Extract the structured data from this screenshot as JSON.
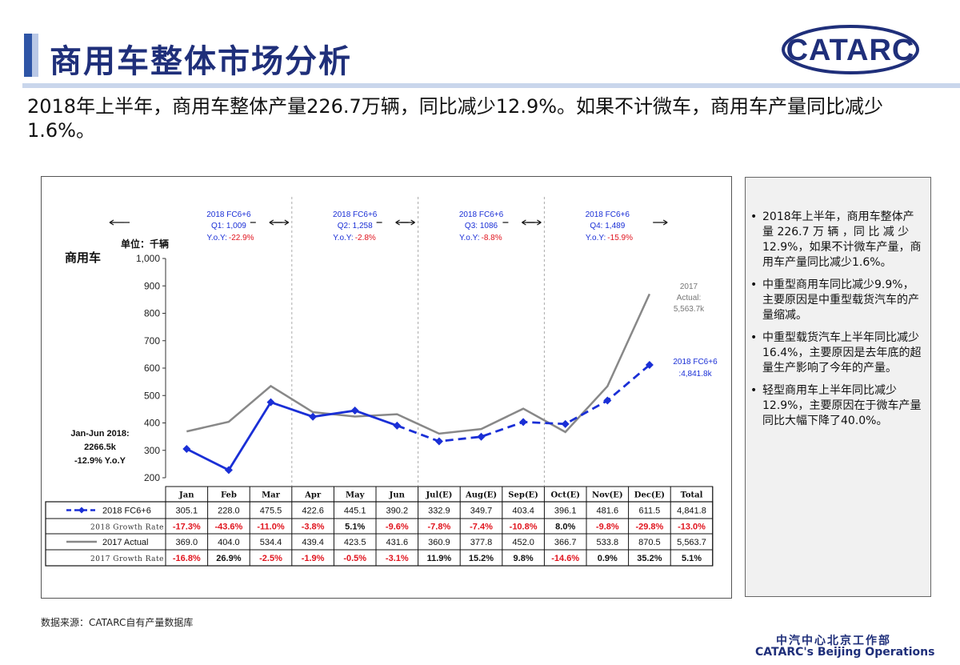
{
  "header": {
    "title": "商用车整体市场分析",
    "logo_text": "CATARC"
  },
  "subtitle": "2018年上半年，商用车整体产量226.7万辆，同比减少12.9%。如果不计微车，商用车产量同比减少1.6%。",
  "side_panel": {
    "bullets": [
      "2018年上半年，商用车整体产量 226.7 万 辆 ，同 比 减 少12.9%，如果不计微车产量，商用车产量同比减少1.6%。",
      "中重型商用车同比减少9.9%，主要原因是中重型载货汽车的产量缩减。",
      "中重型载货汽车上半年同比减少16.4%，主要原因是去年底的超量生产影响了今年的产量。",
      "轻型商用车上半年同比减少12.9%，主要原因在于微车产量同比大幅下降了40.0%。"
    ],
    "bullet_glyph": "•"
  },
  "source": "数据来源：CATARC自有产量数据库",
  "footer": {
    "cn": "中汽中心北京工作部",
    "en": "CATARC's Beijing Operations"
  },
  "colors": {
    "brand": "#1f2f7a",
    "fc_series": "#1a2fd6",
    "actual_series": "#888888",
    "negative": "#e0141e"
  },
  "chart_data": {
    "type": "line",
    "title": "商用车",
    "ylabel": "单位：千辆",
    "ylim": [
      200,
      1000
    ],
    "yticks": [
      "200",
      "300",
      "400",
      "500",
      "600",
      "700",
      "800",
      "900",
      "1,000"
    ],
    "categories": [
      "Jan",
      "Feb",
      "Mar",
      "Apr",
      "May",
      "Jun",
      "Jul(E)",
      "Aug(E)",
      "Sep(E)",
      "Oct(E)",
      "Nov(E)",
      "Dec(E)"
    ],
    "total_label": "Total",
    "series": [
      {
        "name": "2018 FC6+6",
        "values": [
          305.1,
          228.0,
          475.5,
          422.6,
          445.1,
          390.2,
          332.9,
          349.7,
          403.4,
          396.1,
          481.6,
          611.5
        ],
        "cells": [
          "305.1",
          "228.0",
          "475.5",
          "422.6",
          "445.1",
          "390.2",
          "332.9",
          "349.7",
          "403.4",
          "396.1",
          "481.6",
          "611.5",
          "4,841.8"
        ],
        "growth_label": "2018 Growth Rate",
        "growth": [
          "-17.3%",
          "-43.6%",
          "-11.0%",
          "-3.8%",
          "5.1%",
          "-9.6%",
          "-7.8%",
          "-7.4%",
          "-10.8%",
          "8.0%",
          "-9.8%",
          "-29.8%",
          "-13.0%"
        ]
      },
      {
        "name": "2017 Actual",
        "values": [
          369.0,
          404.0,
          534.4,
          439.4,
          423.5,
          431.6,
          360.9,
          377.8,
          452.0,
          366.7,
          533.8,
          870.5
        ],
        "cells": [
          "369.0",
          "404.0",
          "534.4",
          "439.4",
          "423.5",
          "431.6",
          "360.9",
          "377.8",
          "452.0",
          "366.7",
          "533.8",
          "870.5",
          "5,563.7"
        ],
        "growth_label": "2017 Growth Rate",
        "growth": [
          "-16.8%",
          "26.9%",
          "-2.5%",
          "-1.9%",
          "-0.5%",
          "-3.1%",
          "11.9%",
          "15.2%",
          "9.8%",
          "-14.6%",
          "0.9%",
          "35.2%",
          "5.1%"
        ]
      }
    ],
    "quarters": [
      {
        "line1": "2018 FC6+6",
        "line2": "Q1: 1,009",
        "yoy_label": "Y.o.Y:",
        "yoy": "-22.9%"
      },
      {
        "line1": "2018 FC6+6",
        "line2": "Q2: 1,258",
        "yoy_label": "Y.o.Y:",
        "yoy": "-2.8%"
      },
      {
        "line1": "2018 FC6+6",
        "line2": "Q3: 1086",
        "yoy_label": "Y.o.Y:",
        "yoy": "-8.8%"
      },
      {
        "line1": "2018 FC6+6",
        "line2": "Q4: 1,489",
        "yoy_label": "Y.o.Y:",
        "yoy": "-15.9%"
      }
    ],
    "annotations": {
      "actual_end": [
        "2017",
        "Actual:",
        "5,563.7k"
      ],
      "fc_end": [
        "2018 FC6+6",
        ":4,841.8k"
      ],
      "h1_summary": [
        "Jan-Jun 2018:",
        "2266.5k",
        "-12.9% Y.o.Y"
      ]
    }
  }
}
